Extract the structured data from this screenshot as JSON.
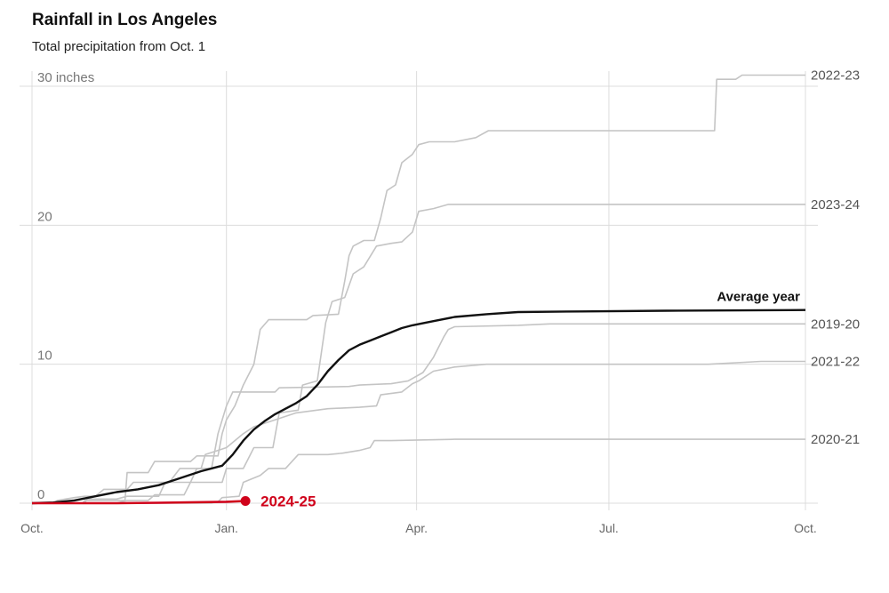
{
  "header": {
    "title": "Rainfall in Los Angeles",
    "subtitle": "Total precipitation from Oct. 1"
  },
  "colors": {
    "past_season": "#c4c4c4",
    "average": "#111111",
    "current": "#d0021b",
    "grid": "#dcdcdc"
  },
  "chart_data": {
    "type": "line",
    "title": "Rainfall in Los Angeles",
    "subtitle": "Total precipitation from Oct. 1",
    "xlabel": "",
    "ylabel": "",
    "x_unit": "days since Oct. 1",
    "xlim": [
      0,
      366
    ],
    "ylim": [
      0,
      30
    ],
    "y_ticks": [
      {
        "value": 0,
        "label": "0"
      },
      {
        "value": 10,
        "label": "10"
      },
      {
        "value": 20,
        "label": "20"
      },
      {
        "value": 30,
        "label": "30 inches"
      }
    ],
    "x_ticks": [
      {
        "value": 0,
        "label": "Oct."
      },
      {
        "value": 92,
        "label": "Jan."
      },
      {
        "value": 182,
        "label": "Apr."
      },
      {
        "value": 273,
        "label": "Jul."
      },
      {
        "value": 366,
        "label": "Oct."
      }
    ],
    "grid": true,
    "series": [
      {
        "name": "2022-23",
        "role": "past",
        "points": [
          [
            0,
            0
          ],
          [
            24,
            0
          ],
          [
            25,
            0.2
          ],
          [
            44,
            0.2
          ],
          [
            45,
            2.2
          ],
          [
            55,
            2.2
          ],
          [
            58,
            3.0
          ],
          [
            75,
            3.0
          ],
          [
            78,
            3.4
          ],
          [
            88,
            3.4
          ],
          [
            90,
            5.0
          ],
          [
            92,
            6.0
          ],
          [
            96,
            7.0
          ],
          [
            100,
            8.5
          ],
          [
            105,
            10.0
          ],
          [
            108,
            12.5
          ],
          [
            112,
            13.2
          ],
          [
            130,
            13.2
          ],
          [
            133,
            13.5
          ],
          [
            145,
            13.6
          ],
          [
            148,
            16.0
          ],
          [
            150,
            17.8
          ],
          [
            152,
            18.5
          ],
          [
            157,
            18.9
          ],
          [
            162,
            18.9
          ],
          [
            165,
            20.5
          ],
          [
            168,
            22.5
          ],
          [
            172,
            22.9
          ],
          [
            175,
            24.5
          ],
          [
            180,
            25.1
          ],
          [
            183,
            25.8
          ],
          [
            188,
            26.0
          ],
          [
            200,
            26.0
          ],
          [
            210,
            26.3
          ],
          [
            216,
            26.8
          ],
          [
            240,
            26.8
          ],
          [
            300,
            26.8
          ],
          [
            323,
            26.8
          ],
          [
            324,
            30.5
          ],
          [
            333,
            30.5
          ],
          [
            336,
            30.8
          ],
          [
            366,
            30.8
          ]
        ]
      },
      {
        "name": "2023-24",
        "role": "past",
        "points": [
          [
            0,
            0
          ],
          [
            40,
            0
          ],
          [
            45,
            0.2
          ],
          [
            55,
            0.2
          ],
          [
            58,
            0.6
          ],
          [
            72,
            0.6
          ],
          [
            75,
            1.5
          ],
          [
            90,
            1.5
          ],
          [
            92,
            2.5
          ],
          [
            100,
            2.5
          ],
          [
            105,
            4.0
          ],
          [
            114,
            4.0
          ],
          [
            117,
            6.5
          ],
          [
            126,
            6.7
          ],
          [
            128,
            8.5
          ],
          [
            135,
            8.8
          ],
          [
            139,
            13.0
          ],
          [
            142,
            14.5
          ],
          [
            148,
            14.8
          ],
          [
            152,
            16.5
          ],
          [
            157,
            17.0
          ],
          [
            163,
            18.5
          ],
          [
            170,
            18.7
          ],
          [
            175,
            18.8
          ],
          [
            180,
            19.5
          ],
          [
            183,
            21.0
          ],
          [
            190,
            21.2
          ],
          [
            197,
            21.5
          ],
          [
            230,
            21.5
          ],
          [
            300,
            21.5
          ],
          [
            366,
            21.5
          ]
        ]
      },
      {
        "name": "2019-20",
        "role": "past",
        "points": [
          [
            0,
            0
          ],
          [
            25,
            0
          ],
          [
            26,
            0.3
          ],
          [
            40,
            0.3
          ],
          [
            45,
            0.5
          ],
          [
            60,
            0.5
          ],
          [
            63,
            1.5
          ],
          [
            75,
            1.5
          ],
          [
            78,
            2.5
          ],
          [
            85,
            2.5
          ],
          [
            88,
            5.0
          ],
          [
            92,
            7.0
          ],
          [
            95,
            8.0
          ],
          [
            115,
            8.0
          ],
          [
            117,
            8.3
          ],
          [
            150,
            8.4
          ],
          [
            155,
            8.5
          ],
          [
            170,
            8.6
          ],
          [
            178,
            8.8
          ],
          [
            185,
            9.4
          ],
          [
            190,
            10.5
          ],
          [
            195,
            12.0
          ],
          [
            197,
            12.5
          ],
          [
            200,
            12.7
          ],
          [
            230,
            12.8
          ],
          [
            245,
            12.9
          ],
          [
            300,
            12.9
          ],
          [
            366,
            12.9
          ]
        ]
      },
      {
        "name": "2021-22",
        "role": "past",
        "points": [
          [
            0,
            0
          ],
          [
            10,
            0
          ],
          [
            12,
            0.2
          ],
          [
            20,
            0.4
          ],
          [
            25,
            0.5
          ],
          [
            30,
            0.5
          ],
          [
            34,
            1.0
          ],
          [
            45,
            1.0
          ],
          [
            48,
            1.5
          ],
          [
            65,
            1.5
          ],
          [
            70,
            2.5
          ],
          [
            80,
            2.5
          ],
          [
            82,
            3.5
          ],
          [
            92,
            4.0
          ],
          [
            100,
            5.0
          ],
          [
            105,
            5.5
          ],
          [
            115,
            6.0
          ],
          [
            125,
            6.5
          ],
          [
            140,
            6.8
          ],
          [
            155,
            6.9
          ],
          [
            163,
            7.0
          ],
          [
            165,
            7.8
          ],
          [
            175,
            8.0
          ],
          [
            180,
            8.6
          ],
          [
            183,
            8.8
          ],
          [
            190,
            9.5
          ],
          [
            200,
            9.8
          ],
          [
            215,
            10.0
          ],
          [
            240,
            10.0
          ],
          [
            320,
            10.0
          ],
          [
            345,
            10.2
          ],
          [
            366,
            10.2
          ]
        ]
      },
      {
        "name": "2020-21",
        "role": "past",
        "points": [
          [
            0,
            0
          ],
          [
            80,
            0
          ],
          [
            85,
            0
          ],
          [
            88,
            0.1
          ],
          [
            90,
            0.4
          ],
          [
            98,
            0.5
          ],
          [
            100,
            1.5
          ],
          [
            108,
            2.0
          ],
          [
            112,
            2.5
          ],
          [
            120,
            2.5
          ],
          [
            126,
            3.5
          ],
          [
            140,
            3.5
          ],
          [
            147,
            3.6
          ],
          [
            155,
            3.8
          ],
          [
            160,
            4.0
          ],
          [
            162,
            4.5
          ],
          [
            170,
            4.5
          ],
          [
            200,
            4.6
          ],
          [
            300,
            4.6
          ],
          [
            366,
            4.6
          ]
        ]
      },
      {
        "name": "Average year",
        "role": "average",
        "points": [
          [
            0,
            0
          ],
          [
            10,
            0.05
          ],
          [
            20,
            0.2
          ],
          [
            30,
            0.5
          ],
          [
            40,
            0.8
          ],
          [
            50,
            1.0
          ],
          [
            60,
            1.3
          ],
          [
            70,
            1.8
          ],
          [
            80,
            2.3
          ],
          [
            90,
            2.7
          ],
          [
            95,
            3.5
          ],
          [
            100,
            4.5
          ],
          [
            105,
            5.3
          ],
          [
            110,
            5.9
          ],
          [
            115,
            6.4
          ],
          [
            120,
            6.8
          ],
          [
            125,
            7.2
          ],
          [
            130,
            7.7
          ],
          [
            135,
            8.5
          ],
          [
            140,
            9.5
          ],
          [
            145,
            10.3
          ],
          [
            150,
            11.0
          ],
          [
            155,
            11.4
          ],
          [
            160,
            11.7
          ],
          [
            165,
            12.0
          ],
          [
            170,
            12.3
          ],
          [
            175,
            12.6
          ],
          [
            180,
            12.8
          ],
          [
            190,
            13.1
          ],
          [
            200,
            13.4
          ],
          [
            215,
            13.6
          ],
          [
            230,
            13.75
          ],
          [
            260,
            13.8
          ],
          [
            300,
            13.85
          ],
          [
            366,
            13.9
          ]
        ]
      },
      {
        "name": "2024-25",
        "role": "current",
        "points": [
          [
            0,
            0
          ],
          [
            40,
            0
          ],
          [
            60,
            0.03
          ],
          [
            92,
            0.1
          ],
          [
            101,
            0.16
          ]
        ]
      }
    ]
  }
}
